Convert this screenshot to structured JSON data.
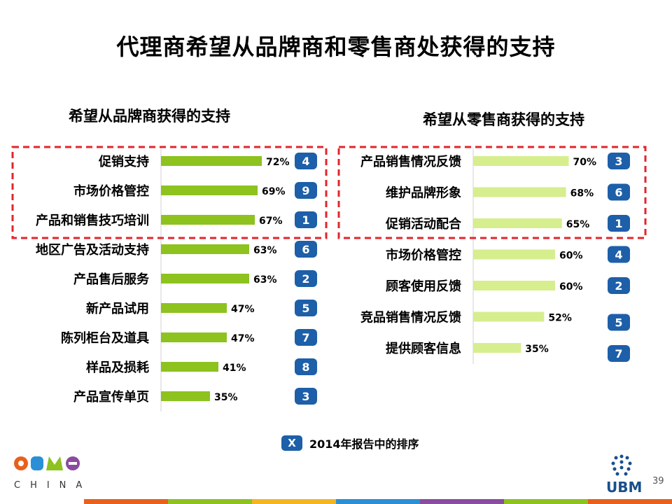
{
  "slide": {
    "title": "代理商希望从品牌商和零售商处获得的支持",
    "page_number": "39",
    "legend_badge": "X",
    "legend_text": "2014年报告中的排序",
    "logo_cbme": "CBME",
    "logo_cbme_sub": "CHINA",
    "logo_ubm": "UBM",
    "colors": {
      "brand_bar": "#8dc21f",
      "retail_bar": "#d6ee8e",
      "badge": "#1d5fa8",
      "highlight_border": "#e2262b",
      "strip": [
        "#e8601c",
        "#8dc21f",
        "#f3b61f",
        "#2a8fd6",
        "#8a4c9e",
        "#8dc21f",
        "#e8601c"
      ]
    }
  },
  "chart_data": [
    {
      "type": "bar",
      "orientation": "horizontal",
      "title": "希望从品牌商获得的支持",
      "categories": [
        "促销支持",
        "市场价格管控",
        "产品和销售技巧培训",
        "地区广告及活动支持",
        "产品售后服务",
        "新产品试用",
        "陈列柜台及道具",
        "样品及损耗",
        "产品宣传单页"
      ],
      "values": [
        72,
        69,
        67,
        63,
        63,
        47,
        47,
        41,
        35
      ],
      "value_labels": [
        "72%",
        "69%",
        "67%",
        "63%",
        "63%",
        "47%",
        "47%",
        "41%",
        "35%"
      ],
      "rank_2014": [
        "4",
        "9",
        "1",
        "6",
        "2",
        "5",
        "7",
        "8",
        "3"
      ],
      "highlighted_count": 3,
      "xlim": [
        0,
        100
      ]
    },
    {
      "type": "bar",
      "orientation": "horizontal",
      "title": "希望从零售商获得的支持",
      "categories": [
        "产品销售情况反馈",
        "维护品牌形象",
        "促销活动配合",
        "市场价格管控",
        "顾客使用反馈",
        "竞品销售情况反馈",
        "提供顾客信息"
      ],
      "values": [
        70,
        68,
        65,
        60,
        60,
        52,
        35
      ],
      "value_labels": [
        "70%",
        "68%",
        "65%",
        "60%",
        "60%",
        "52%",
        "35%"
      ],
      "rank_2014": [
        "3",
        "6",
        "1",
        "4",
        "2",
        "5",
        "7"
      ],
      "highlighted_count": 3,
      "xlim": [
        0,
        100
      ]
    }
  ]
}
